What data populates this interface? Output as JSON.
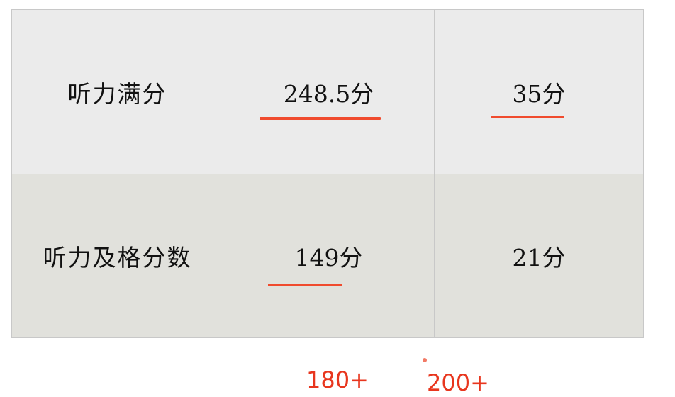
{
  "table": {
    "rows": [
      {
        "label": "听力满分",
        "col2": "248.5分",
        "col3": "35分"
      },
      {
        "label": "听力及格分数",
        "col2": "149分",
        "col3": "21分"
      }
    ]
  },
  "annotations": {
    "left": "180+",
    "right": "200+"
  },
  "colors": {
    "underline": "#f04b2e",
    "annotation": "#e8361e",
    "row1_bg": "#ebebeb",
    "row2_bg": "#e1e1dc"
  }
}
